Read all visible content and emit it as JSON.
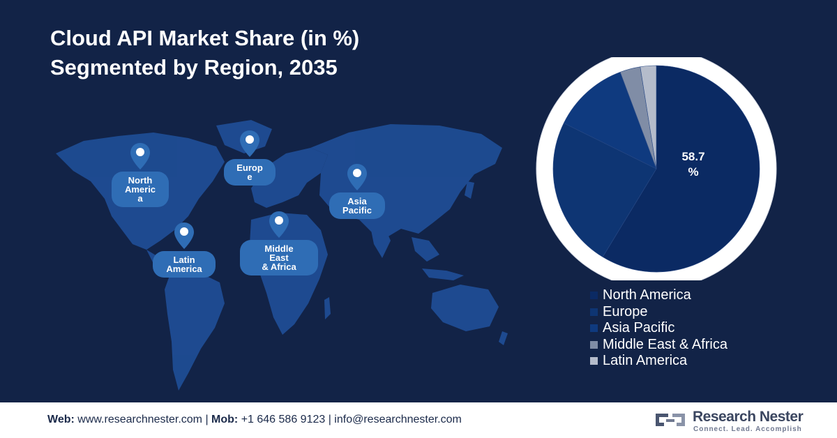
{
  "title": {
    "line1": "Cloud API Market Share (in %)",
    "line2": "Segmented by Region, 2035"
  },
  "map": {
    "pins": [
      {
        "id": "north-america",
        "label": "North\nAmeric\na"
      },
      {
        "id": "europe",
        "label": "Europ\ne"
      },
      {
        "id": "asia-pacific",
        "label": "Asia\nPacific"
      },
      {
        "id": "latin-america",
        "label": "Latin\nAmerica"
      },
      {
        "id": "middle-east-africa",
        "label": "Middle\nEast\n& Africa"
      }
    ],
    "pin_color": "#2f6db5"
  },
  "chart_data": {
    "type": "pie",
    "title": "Cloud API Market Share (in %) Segmented by Region, 2035",
    "categories": [
      "North America",
      "Europe",
      "Asia Pacific",
      "Middle East & Africa",
      "Latin America"
    ],
    "values": [
      58.7,
      23.6,
      12.0,
      3.2,
      2.5
    ],
    "colors": [
      "#0b2a63",
      "#0e3573",
      "#0f3a7f",
      "#808da6",
      "#b5bccb"
    ],
    "data_labels": [
      {
        "category": "North America",
        "text": "58.7\n%"
      }
    ],
    "legend_position": "bottom"
  },
  "footer": {
    "web_label": "Web:",
    "web_value": " www.researchnester.com | ",
    "mob_label": "Mob:",
    "mob_value": " +1 646 586 9123 | info@researchnester.com",
    "brand_name": "Research Nester",
    "brand_tagline": "Connect. Lead. Accomplish"
  }
}
